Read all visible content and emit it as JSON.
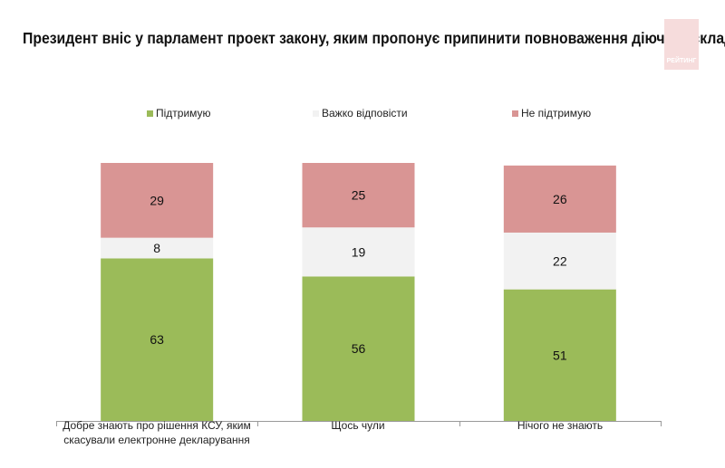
{
  "chart_data": {
    "type": "bar",
    "stacked": true,
    "title": "Президент вніс у парламент проект закону, яким пропонує припинити повноваження діючого складу Конституційного Суду. Чи підтримуєте Ви прийняття цього закону?",
    "categories": [
      "Добре знають про рішення КСУ, яким скасували електронне декларування",
      "Щось чули",
      "Нічого не знають"
    ],
    "series": [
      {
        "name": "Підтримую",
        "values": [
          63,
          56,
          51
        ],
        "color": "#9bbb59"
      },
      {
        "name": "Важко відповісти",
        "values": [
          8,
          19,
          22
        ],
        "color": "#f2f2f2"
      },
      {
        "name": "Не підтримую",
        "values": [
          29,
          25,
          26
        ],
        "color": "#d99594"
      }
    ],
    "ylim": [
      0,
      100
    ],
    "legend": "top",
    "grid": false,
    "xlabel": "",
    "ylabel": ""
  },
  "logo_text": "РЕЙТИНГ"
}
